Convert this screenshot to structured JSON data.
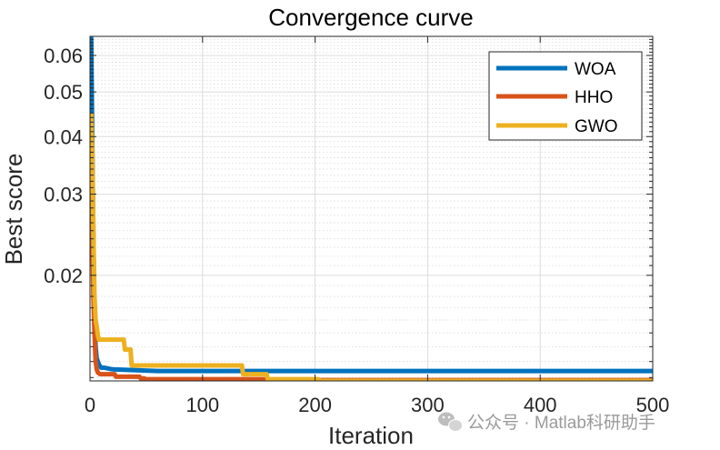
{
  "chart_data": {
    "type": "line",
    "title": "Convergence curve",
    "xlabel": "Iteration",
    "ylabel": "Best score",
    "xlim": [
      0,
      500
    ],
    "ylim": [
      0.0118,
      0.066
    ],
    "yscale": "log",
    "grid": true,
    "x_ticks": [
      0,
      100,
      200,
      300,
      400,
      500
    ],
    "x_tick_labels": [
      "0",
      "100",
      "200",
      "300",
      "400",
      "500"
    ],
    "y_ticks": [
      0.02,
      0.03,
      0.04,
      0.05,
      0.06
    ],
    "y_tick_labels": [
      "0.02",
      "0.03",
      "0.04",
      "0.05",
      "0.06"
    ],
    "legend_position": "top-right",
    "series": [
      {
        "name": "WOA",
        "color": "#0072BD",
        "x": [
          1,
          2,
          3,
          4,
          5,
          6,
          8,
          10,
          13,
          20,
          60,
          500
        ],
        "y": [
          0.066,
          0.04,
          0.025,
          0.016,
          0.014,
          0.0132,
          0.0128,
          0.0126,
          0.0126,
          0.0125,
          0.0124,
          0.0124
        ]
      },
      {
        "name": "HHO",
        "color": "#D95319",
        "x": [
          1,
          2,
          3,
          4,
          5,
          6,
          7,
          8,
          9,
          22,
          23,
          44,
          45,
          48,
          50,
          100,
          155,
          157,
          500
        ],
        "y": [
          0.045,
          0.025,
          0.018,
          0.015,
          0.013,
          0.0125,
          0.0123,
          0.01225,
          0.0122,
          0.0122,
          0.01205,
          0.01205,
          0.01195,
          0.01195,
          0.0119,
          0.0119,
          0.0119,
          0.01185,
          0.01185
        ]
      },
      {
        "name": "GWO",
        "color": "#EDB120",
        "x": [
          1,
          2,
          3,
          4,
          5,
          6,
          7,
          8,
          30,
          31,
          32,
          36,
          37,
          135,
          136,
          157,
          158,
          203,
          204,
          440,
          441,
          500
        ],
        "y": [
          0.045,
          0.037,
          0.025,
          0.018,
          0.016,
          0.0155,
          0.0148,
          0.0145,
          0.0145,
          0.0138,
          0.0138,
          0.0138,
          0.01275,
          0.01275,
          0.0122,
          0.0122,
          0.0119,
          0.0119,
          0.01175,
          0.01175,
          0.0117,
          0.0117
        ]
      }
    ]
  },
  "watermark": {
    "icon": "wechat-icon",
    "text": "公众号 · Matlab科研助手"
  }
}
